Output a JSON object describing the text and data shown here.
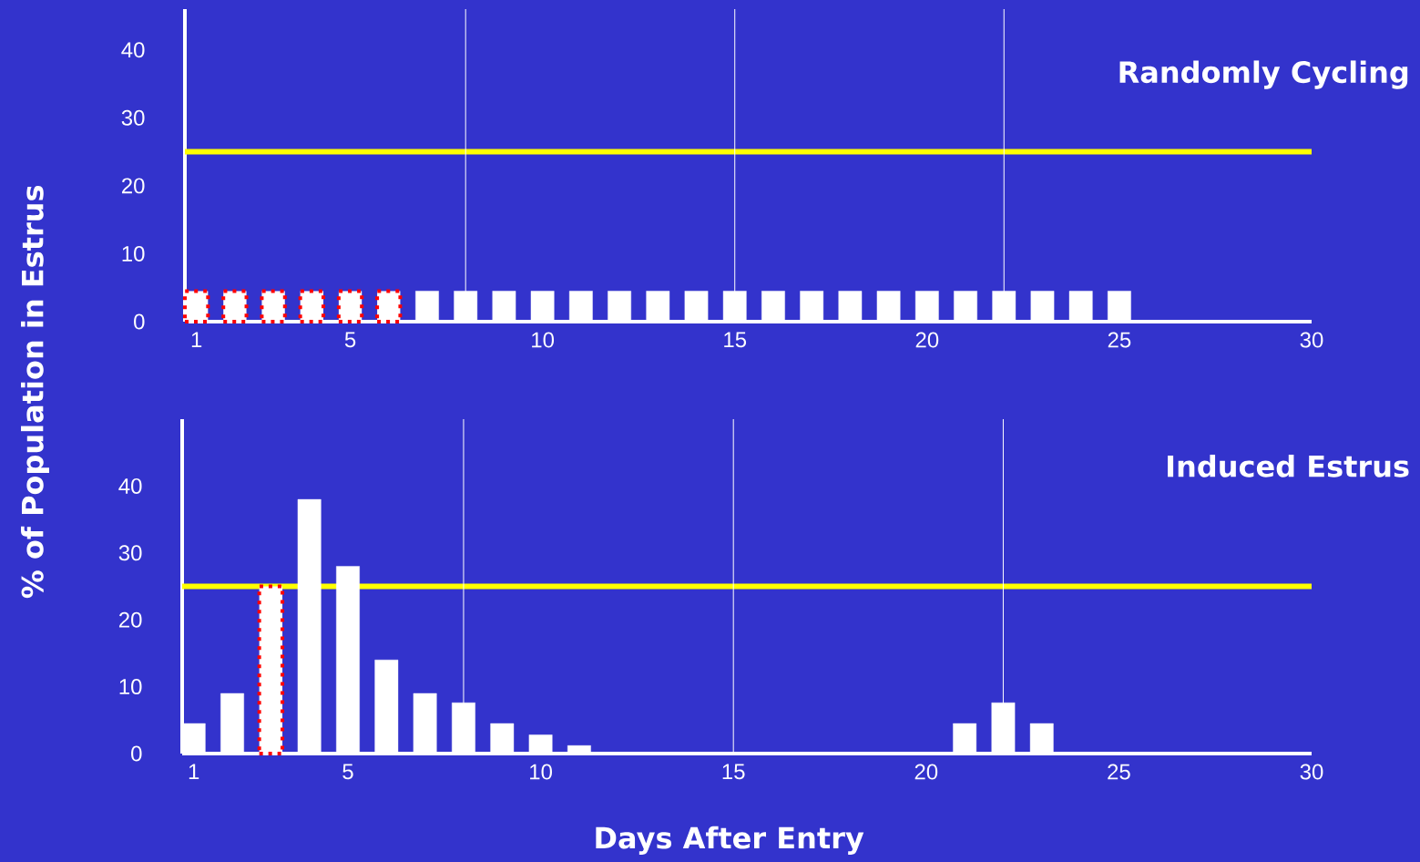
{
  "chart_data": [
    {
      "type": "bar",
      "title": "Randomly Cycling",
      "ylabel": "% of Population in Estrus",
      "x": [
        1,
        2,
        3,
        4,
        5,
        6,
        7,
        8,
        9,
        10,
        11,
        12,
        13,
        14,
        15,
        16,
        17,
        18,
        19,
        20,
        21,
        22,
        23,
        24,
        25
      ],
      "series": [
        {
          "color": "#ffffff",
          "line_style": "dotted",
          "values": [
            4.5,
            4.5,
            4.5,
            4.5,
            4.5,
            4.5,
            null,
            null,
            null,
            null,
            null,
            null,
            null,
            null,
            null,
            null,
            null,
            null,
            null,
            null,
            null,
            null,
            null,
            null,
            null
          ]
        },
        {
          "color": "#ffffff",
          "values": [
            null,
            null,
            null,
            null,
            null,
            null,
            4.5,
            4.5,
            4.5,
            4.5,
            4.5,
            4.5,
            4.5,
            4.5,
            4.5,
            4.5,
            4.5,
            4.5,
            4.5,
            4.5,
            4.5,
            4.5,
            4.5,
            4.5,
            4.5
          ]
        }
      ],
      "xlim": [
        0.7,
        30
      ],
      "ylim": [
        0,
        46
      ],
      "xticks": [
        1,
        5,
        10,
        15,
        20,
        25,
        30
      ],
      "yticks": [
        0,
        10,
        20,
        30,
        40
      ],
      "ref_lines": [
        {
          "axis": "y",
          "value": 25,
          "color": "#ffff00"
        },
        {
          "axis": "x",
          "value": 8,
          "color": "#ffffff"
        },
        {
          "axis": "x",
          "value": 15,
          "color": "#ffffff"
        },
        {
          "axis": "x",
          "value": 22,
          "color": "#ffffff"
        }
      ]
    },
    {
      "type": "bar",
      "title": "Induced Estrus",
      "xlabel": "Days After Entry",
      "x": [
        1,
        2,
        3,
        4,
        5,
        6,
        7,
        8,
        9,
        10,
        11,
        21,
        22,
        23
      ],
      "series": [
        {
          "color": "#ffffff",
          "line_style": "dotted",
          "values": [
            null,
            null,
            25,
            null,
            null,
            null,
            null,
            null,
            null,
            null,
            null,
            null,
            null,
            null
          ]
        },
        {
          "color": "#ffffff",
          "values": [
            4.5,
            9,
            null,
            38,
            28,
            14,
            9,
            7.6,
            4.5,
            2.8,
            1.2,
            4.5,
            7.6,
            4.5
          ]
        }
      ],
      "xlim": [
        0.7,
        30
      ],
      "ylim": [
        0,
        50
      ],
      "xticks": [
        1,
        5,
        10,
        15,
        20,
        25,
        30
      ],
      "yticks": [
        0,
        10,
        20,
        30,
        40
      ],
      "ref_lines": [
        {
          "axis": "y",
          "value": 25,
          "color": "#ffff00"
        },
        {
          "axis": "x",
          "value": 8,
          "color": "#ffffff"
        },
        {
          "axis": "x",
          "value": 15,
          "color": "#ffffff"
        },
        {
          "axis": "x",
          "value": 22,
          "color": "#ffffff"
        }
      ]
    }
  ]
}
